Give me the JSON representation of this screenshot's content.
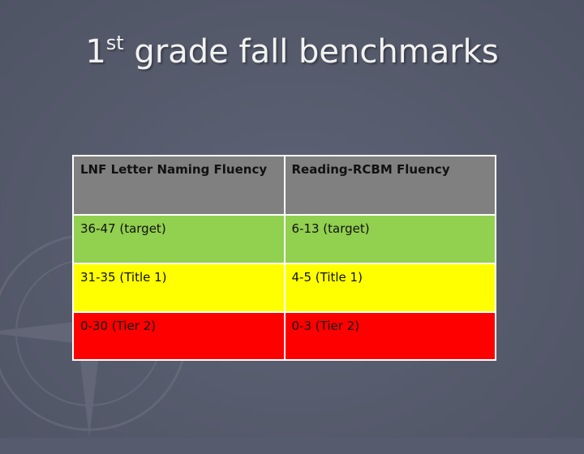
{
  "slide": {
    "title_number": "1",
    "title_superscript": "st",
    "title_rest": " grade fall benchmarks"
  },
  "table": {
    "headers": [
      "LNF Letter Naming Fluency",
      "Reading-RCBM Fluency"
    ],
    "rows": [
      {
        "level": "target",
        "color": "#92d050",
        "cells": [
          "36-47 (target)",
          "6-13 (target)"
        ]
      },
      {
        "level": "title1",
        "color": "#ffff00",
        "cells": [
          "31-35 (Title 1)",
          "4-5 (Title 1)"
        ]
      },
      {
        "level": "tier2",
        "color": "#ff0000",
        "cells": [
          "0-30 (Tier 2)",
          "0-3 (Tier 2)"
        ]
      }
    ],
    "header_color": "#808080"
  },
  "background": {
    "color": "#565c6e",
    "watermark_icon": "compass-rose-icon"
  }
}
